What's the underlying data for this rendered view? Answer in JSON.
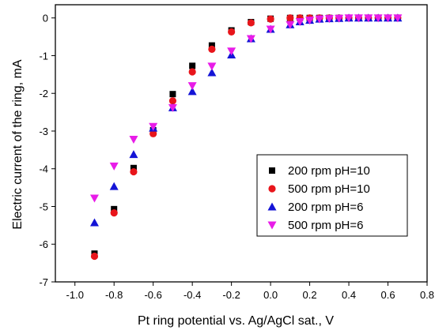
{
  "chart_data": {
    "type": "scatter",
    "xlabel": "Pt ring potential vs. Ag/AgCl sat., V",
    "ylabel": "Electric current of the ring, mA",
    "xlim": [
      -1.1,
      0.8
    ],
    "ylim": [
      -7,
      0.35
    ],
    "x_ticks": [
      -1.0,
      -0.8,
      -0.6,
      -0.4,
      -0.2,
      0.0,
      0.2,
      0.4,
      0.6,
      0.8
    ],
    "x_tick_labels": [
      "-1.0",
      "-0.8",
      "-0.6",
      "-0.4",
      "-0.2",
      "0.0",
      "0.2",
      "0.4",
      "0.6",
      "0.8"
    ],
    "y_ticks": [
      0,
      -1,
      -2,
      -3,
      -4,
      -5,
      -6,
      -7
    ],
    "y_tick_labels": [
      "0",
      "-1",
      "-2",
      "-3",
      "-4",
      "-5",
      "-6",
      "-7"
    ],
    "grid": false,
    "legend_position": "right",
    "series": [
      {
        "name": "200 rpm pH=10",
        "marker": "square",
        "color": "#000000",
        "x": [
          -0.9,
          -0.8,
          -0.7,
          -0.6,
          -0.5,
          -0.4,
          -0.3,
          -0.2,
          -0.1,
          0.0,
          0.1,
          0.15,
          0.2,
          0.25,
          0.3,
          0.35,
          0.4,
          0.45,
          0.5,
          0.55,
          0.6,
          0.65
        ],
        "y": [
          -6.25,
          -5.07,
          -3.98,
          -2.98,
          -2.02,
          -1.27,
          -0.73,
          -0.33,
          -0.11,
          -0.02,
          0.0,
          0.0,
          0.0,
          0.0,
          0.0,
          0.0,
          0.0,
          0.0,
          0.0,
          0.0,
          0.0,
          0.0
        ]
      },
      {
        "name": "500 rpm pH=10",
        "marker": "circle",
        "color": "#e8151b",
        "x": [
          -0.9,
          -0.8,
          -0.7,
          -0.6,
          -0.5,
          -0.4,
          -0.3,
          -0.2,
          -0.1,
          0.0,
          0.1,
          0.15,
          0.2,
          0.25,
          0.3,
          0.35,
          0.4,
          0.45,
          0.5,
          0.55,
          0.6,
          0.65
        ],
        "y": [
          -6.32,
          -5.17,
          -4.08,
          -3.07,
          -2.2,
          -1.43,
          -0.83,
          -0.37,
          -0.13,
          -0.03,
          0.0,
          0.0,
          0.0,
          0.0,
          0.0,
          0.0,
          0.0,
          0.0,
          0.0,
          0.0,
          0.0,
          0.0
        ]
      },
      {
        "name": "200 rpm pH=6",
        "marker": "triangle-up",
        "color": "#1414d6",
        "x": [
          -0.9,
          -0.8,
          -0.7,
          -0.6,
          -0.5,
          -0.4,
          -0.3,
          -0.2,
          -0.1,
          0.0,
          0.1,
          0.15,
          0.2,
          0.25,
          0.3,
          0.35,
          0.4,
          0.45,
          0.5,
          0.55,
          0.6,
          0.65
        ],
        "y": [
          -5.43,
          -4.47,
          -3.62,
          -2.92,
          -2.38,
          -1.95,
          -1.45,
          -0.98,
          -0.55,
          -0.3,
          -0.18,
          -0.1,
          -0.06,
          -0.03,
          -0.02,
          -0.01,
          0.0,
          0.0,
          0.0,
          0.0,
          0.0,
          0.0
        ]
      },
      {
        "name": "500 rpm pH=6",
        "marker": "triangle-down",
        "color": "#e81ce8",
        "x": [
          -0.9,
          -0.8,
          -0.7,
          -0.6,
          -0.5,
          -0.4,
          -0.3,
          -0.2,
          -0.1,
          0.0,
          0.1,
          0.15,
          0.2,
          0.25,
          0.3,
          0.35,
          0.4,
          0.45,
          0.5,
          0.55,
          0.6,
          0.65
        ],
        "y": [
          -4.78,
          -3.93,
          -3.22,
          -2.88,
          -2.38,
          -1.8,
          -1.28,
          -0.88,
          -0.55,
          -0.3,
          -0.18,
          -0.1,
          -0.06,
          -0.03,
          -0.02,
          -0.01,
          0.0,
          0.0,
          0.0,
          0.0,
          0.0,
          0.0
        ]
      }
    ]
  }
}
